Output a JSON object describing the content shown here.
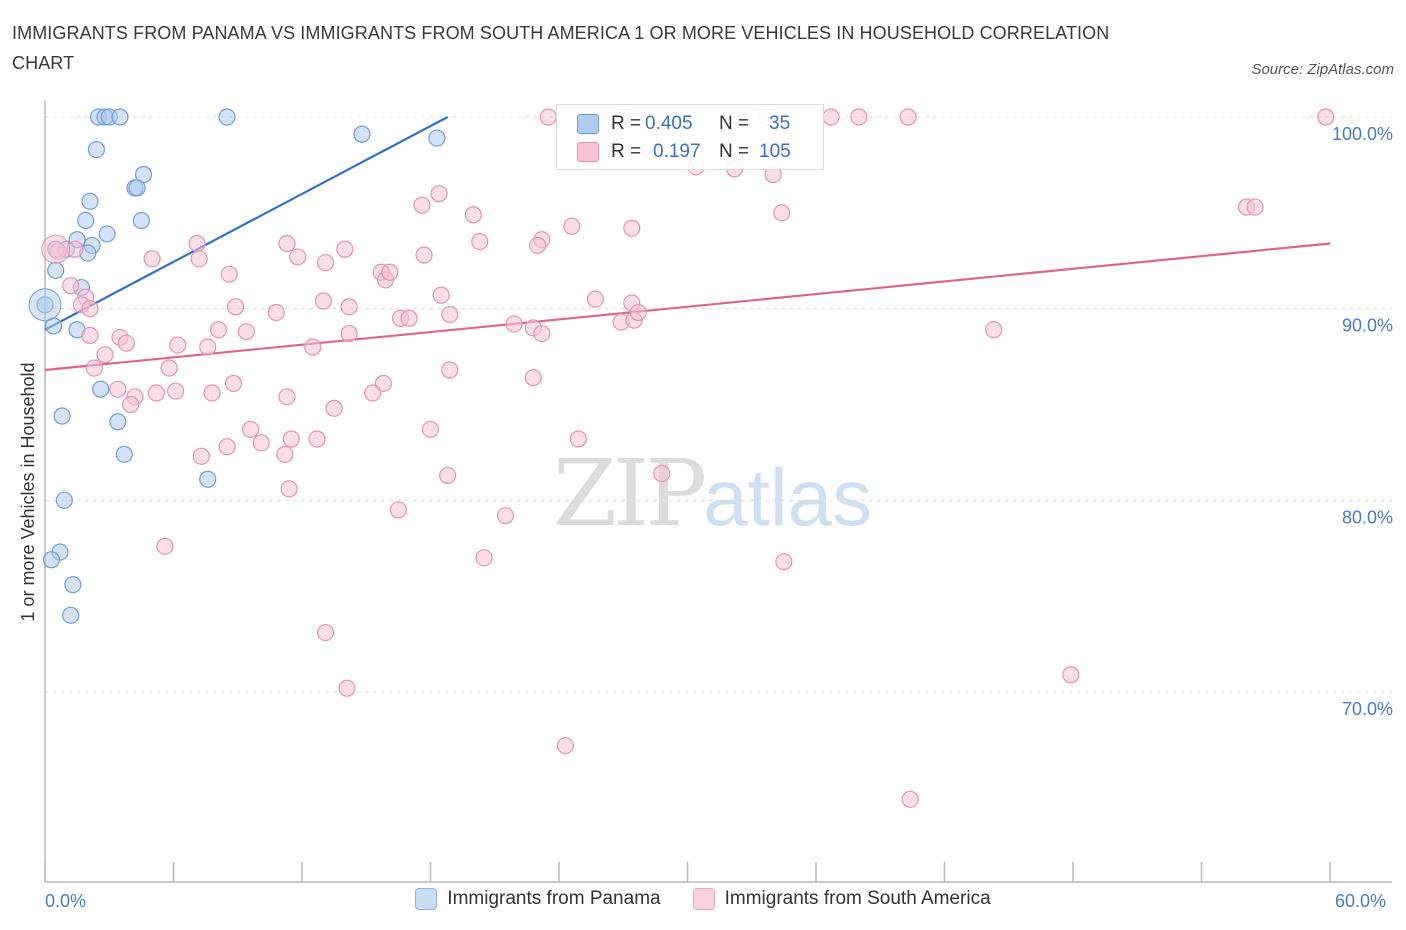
{
  "title": "IMMIGRANTS FROM PANAMA VS IMMIGRANTS FROM SOUTH AMERICA 1 OR MORE VEHICLES IN HOUSEHOLD CORRELATION CHART",
  "source": "Source: ZipAtlas.com",
  "watermark": {
    "zip": "ZIP",
    "atlas": "atlas"
  },
  "legend_top": [
    {
      "r_label": "R =",
      "r_value": "0.405",
      "n_label": "N =",
      "n_value": "35"
    },
    {
      "r_label": "R =",
      "r_value": "0.197",
      "n_label": "N =",
      "n_value": "105"
    }
  ],
  "legend_bottom": [
    "Immigrants from Panama",
    "Immigrants from South America"
  ],
  "x_axis": {
    "min_label": "0.0%",
    "max_label": "60.0%"
  },
  "colors": {
    "panama_fill": "#aecbf0",
    "panama_stroke": "#6f9edf",
    "panama_line": "#2e72cc",
    "sa_fill": "#f7c3d3",
    "sa_stroke": "#e893b0",
    "sa_line": "#e0638f"
  },
  "chart_data": {
    "type": "scatter",
    "title": "IMMIGRANTS FROM PANAMA VS IMMIGRANTS FROM SOUTH AMERICA 1 OR MORE VEHICLES IN HOUSEHOLD CORRELATION CHART",
    "xlabel": "",
    "ylabel": "1 or more Vehicles in Household",
    "xlim": [
      0,
      60
    ],
    "ylim": [
      61,
      101
    ],
    "y_ticks": [
      {
        "v": 100,
        "label": "100.0%"
      },
      {
        "v": 90,
        "label": "90.0%"
      },
      {
        "v": 80,
        "label": "80.0%"
      },
      {
        "v": 70,
        "label": "70.0%"
      }
    ],
    "grid": true,
    "series": [
      {
        "name": "Immigrants from Panama",
        "r": 0.405,
        "n": 35,
        "trend": {
          "x": [
            0,
            18.8
          ],
          "y": [
            88.9,
            100.0
          ]
        },
        "points": [
          [
            2.5,
            100
          ],
          [
            2.8,
            100
          ],
          [
            3.0,
            100
          ],
          [
            3.5,
            100
          ],
          [
            8.5,
            100
          ],
          [
            14.8,
            99.1
          ],
          [
            18.3,
            98.9
          ],
          [
            2.4,
            98.3
          ],
          [
            4.6,
            97.0
          ],
          [
            4.2,
            96.3
          ],
          [
            4.3,
            96.3
          ],
          [
            2.1,
            95.6
          ],
          [
            1.9,
            94.6
          ],
          [
            4.5,
            94.6
          ],
          [
            1.5,
            93.6
          ],
          [
            2.9,
            93.9
          ],
          [
            2.2,
            93.3
          ],
          [
            2.0,
            92.9
          ],
          [
            1.0,
            93.1
          ],
          [
            0.5,
            93.1
          ],
          [
            0.5,
            92.0
          ],
          [
            1.7,
            91.1
          ],
          [
            0.0,
            90.2
          ],
          [
            0.4,
            89.1
          ],
          [
            1.5,
            88.9
          ],
          [
            2.6,
            85.8
          ],
          [
            0.8,
            84.4
          ],
          [
            3.4,
            84.1
          ],
          [
            3.7,
            82.4
          ],
          [
            7.6,
            81.1
          ],
          [
            0.9,
            80.0
          ],
          [
            0.7,
            77.3
          ],
          [
            0.3,
            76.9
          ],
          [
            1.3,
            75.6
          ],
          [
            1.2,
            74.0
          ]
        ]
      },
      {
        "name": "Immigrants from South America",
        "r": 0.197,
        "n": 105,
        "trend": {
          "x": [
            0,
            60
          ],
          "y": [
            86.8,
            93.4
          ]
        },
        "points": [
          [
            23.5,
            100
          ],
          [
            27.0,
            100
          ],
          [
            33.7,
            100
          ],
          [
            36.7,
            100
          ],
          [
            38.0,
            100
          ],
          [
            40.3,
            100
          ],
          [
            59.8,
            100
          ],
          [
            34.5,
            98.4
          ],
          [
            26.8,
            98.4
          ],
          [
            30.4,
            97.4
          ],
          [
            32.2,
            97.3
          ],
          [
            34.0,
            97.0
          ],
          [
            18.4,
            96.0
          ],
          [
            17.6,
            95.4
          ],
          [
            20.0,
            94.9
          ],
          [
            34.4,
            95.0
          ],
          [
            56.1,
            95.3
          ],
          [
            56.5,
            95.3
          ],
          [
            24.6,
            94.3
          ],
          [
            27.4,
            94.2
          ],
          [
            23.2,
            93.6
          ],
          [
            20.3,
            93.5
          ],
          [
            23.0,
            93.3
          ],
          [
            7.1,
            93.4
          ],
          [
            11.3,
            93.4
          ],
          [
            14.0,
            93.1
          ],
          [
            17.7,
            92.8
          ],
          [
            0.6,
            93.0
          ],
          [
            1.4,
            93.1
          ],
          [
            5.0,
            92.6
          ],
          [
            7.2,
            92.6
          ],
          [
            11.8,
            92.7
          ],
          [
            13.1,
            92.4
          ],
          [
            15.7,
            91.9
          ],
          [
            8.6,
            91.8
          ],
          [
            15.9,
            91.5
          ],
          [
            16.1,
            91.9
          ],
          [
            1.2,
            91.2
          ],
          [
            1.9,
            90.6
          ],
          [
            18.5,
            90.7
          ],
          [
            25.7,
            90.5
          ],
          [
            27.4,
            90.3
          ],
          [
            8.9,
            90.1
          ],
          [
            13.0,
            90.4
          ],
          [
            14.2,
            90.1
          ],
          [
            1.7,
            90.2
          ],
          [
            2.1,
            90.0
          ],
          [
            10.8,
            89.8
          ],
          [
            16.6,
            89.5
          ],
          [
            17.0,
            89.5
          ],
          [
            18.9,
            89.7
          ],
          [
            21.9,
            89.2
          ],
          [
            22.8,
            89.0
          ],
          [
            23.2,
            88.7
          ],
          [
            26.9,
            89.3
          ],
          [
            27.5,
            89.4
          ],
          [
            27.7,
            89.8
          ],
          [
            44.3,
            88.9
          ],
          [
            14.2,
            88.7
          ],
          [
            8.1,
            88.9
          ],
          [
            9.4,
            88.8
          ],
          [
            2.1,
            88.6
          ],
          [
            3.5,
            88.5
          ],
          [
            3.8,
            88.2
          ],
          [
            6.2,
            88.1
          ],
          [
            7.6,
            88.0
          ],
          [
            12.5,
            88.0
          ],
          [
            2.8,
            87.6
          ],
          [
            2.3,
            86.9
          ],
          [
            5.8,
            86.9
          ],
          [
            18.9,
            86.8
          ],
          [
            22.8,
            86.4
          ],
          [
            8.8,
            86.1
          ],
          [
            15.8,
            86.1
          ],
          [
            3.4,
            85.8
          ],
          [
            5.2,
            85.6
          ],
          [
            6.1,
            85.7
          ],
          [
            15.3,
            85.6
          ],
          [
            7.8,
            85.6
          ],
          [
            11.3,
            85.4
          ],
          [
            4.2,
            85.4
          ],
          [
            4.0,
            85.0
          ],
          [
            13.5,
            84.8
          ],
          [
            9.6,
            83.7
          ],
          [
            18.0,
            83.7
          ],
          [
            11.5,
            83.2
          ],
          [
            10.1,
            83.0
          ],
          [
            12.7,
            83.2
          ],
          [
            24.9,
            83.2
          ],
          [
            7.3,
            82.3
          ],
          [
            8.5,
            82.8
          ],
          [
            11.2,
            82.4
          ],
          [
            28.8,
            81.4
          ],
          [
            18.8,
            81.3
          ],
          [
            11.4,
            80.6
          ],
          [
            16.5,
            79.5
          ],
          [
            21.5,
            79.2
          ],
          [
            5.6,
            77.6
          ],
          [
            20.5,
            77.0
          ],
          [
            34.5,
            76.8
          ],
          [
            13.1,
            73.1
          ],
          [
            14.1,
            70.2
          ],
          [
            47.9,
            70.9
          ],
          [
            24.3,
            67.2
          ],
          [
            40.4,
            64.4
          ]
        ]
      }
    ]
  }
}
